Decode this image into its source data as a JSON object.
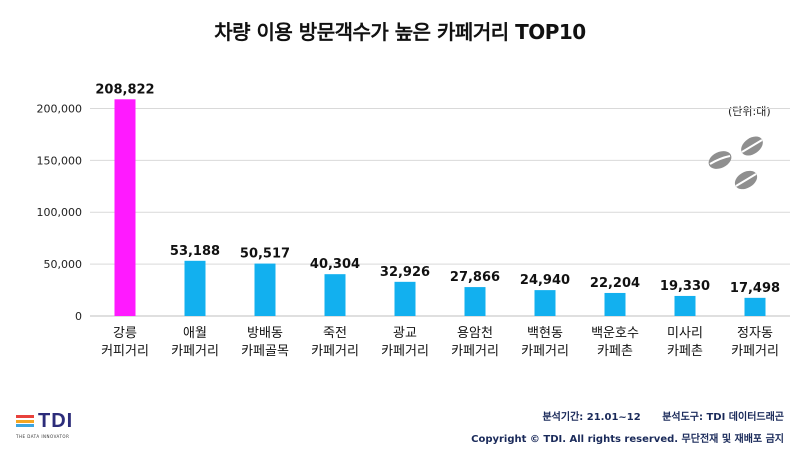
{
  "title": "차량 이용 방문객수가 높은 카페거리 TOP10",
  "unit_label": "(단위:대)",
  "footer": {
    "period": "분석기간: 21.01~12",
    "tool": "분석도구: TDI 데이터드래곤",
    "copyright": "Copyright © TDI. All rights reserved. 무단전재 및 재배포 금지"
  },
  "logo": {
    "text": "TDI",
    "subtitle": "THE DATA INNOVATOR"
  },
  "colors": {
    "highlight": "#ff1aff",
    "bar": "#12b0ef",
    "grid": "#d9d9d9"
  },
  "icons": [
    "coffee-beans-icon"
  ],
  "chart_data": {
    "type": "bar",
    "title": "차량 이용 방문객수가 높은 카페거리 TOP10",
    "categories": [
      [
        "강릉",
        "커피거리"
      ],
      [
        "애월",
        "카페거리"
      ],
      [
        "방배동",
        "카페골목"
      ],
      [
        "죽전",
        "카페거리"
      ],
      [
        "광교",
        "카페거리"
      ],
      [
        "용암천",
        "카페거리"
      ],
      [
        "백현동",
        "카페거리"
      ],
      [
        "백운호수",
        "카페촌"
      ],
      [
        "미사리",
        "카페촌"
      ],
      [
        "정자동",
        "카페거리"
      ]
    ],
    "values": [
      208822,
      53188,
      50517,
      40304,
      32926,
      27866,
      24940,
      22204,
      19330,
      17498
    ],
    "data_labels": [
      "208,822",
      "53,188",
      "50,517",
      "40,304",
      "32,926",
      "27,866",
      "24,940",
      "22,204",
      "19,330",
      "17,498"
    ],
    "yticks": [
      0,
      50000,
      100000,
      150000,
      200000
    ],
    "ytick_labels": [
      "0",
      "50,000",
      "100,000",
      "150,000",
      "200,000"
    ],
    "ylim": [
      0,
      212000
    ],
    "highlight_index": 0,
    "grid": true
  }
}
